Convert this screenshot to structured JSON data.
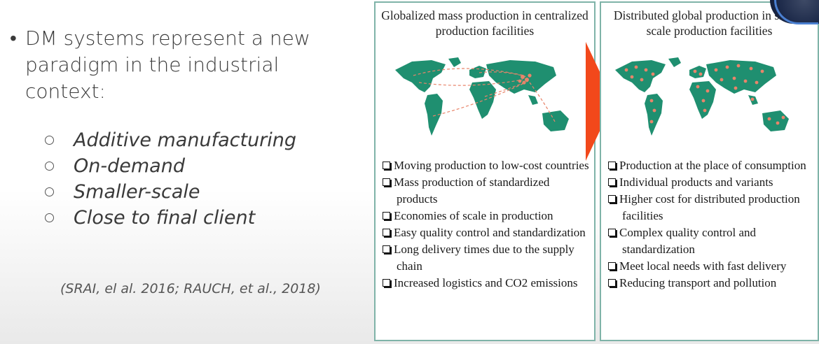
{
  "left": {
    "main_bullet": "DM systems represent a new paradigm in the industrial context:",
    "sub_items": [
      "Additive manufacturing",
      "On-demand",
      "Smaller-scale",
      "Close to final client"
    ],
    "citation": "(SRAI, el al. 2016; RAUCH,  et  al.,  2018)"
  },
  "panels": [
    {
      "title": "Globalized mass production in centralized production facilities",
      "items": [
        "Moving production to low-cost countries",
        "Mass production of standardized products",
        "Economies of scale in production",
        "Easy quality control and standardization",
        "Long delivery times due to the supply chain",
        "Increased logistics and CO2 emissions"
      ]
    },
    {
      "title": "Distributed global production in small-scale production facilities",
      "items": [
        "Production at the place of consumption",
        "Individual products and variants",
        "Higher cost for distributed production facilities",
        "Complex quality control and standardization",
        "Meet local needs with fast delivery",
        "Reducing transport and pollution"
      ]
    }
  ],
  "colors": {
    "map_land": "#1f8f70",
    "production_marker": "#e8846a",
    "arrow": "#f2481b",
    "panel_border": "#7fb3a8"
  },
  "icons": {
    "transition_arrow": "arrow-right-icon",
    "list_marker": "checkbox-icon"
  }
}
